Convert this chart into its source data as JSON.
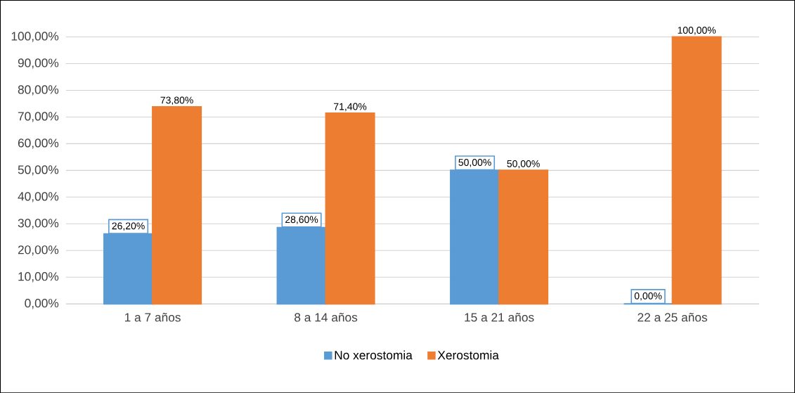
{
  "chart_data": {
    "type": "bar",
    "categories": [
      "1 a 7 años",
      "8 a 14 años",
      "15 a 21 años",
      "22 a 25 años"
    ],
    "series": [
      {
        "name": "No xerostomia",
        "color": "#5b9bd5",
        "values": [
          26.2,
          28.6,
          50,
          0
        ],
        "value_labels": [
          "26,20%",
          "28,60%",
          "50,00%",
          "0,00%"
        ]
      },
      {
        "name": "Xerostomia",
        "color": "#ed7d31",
        "values": [
          73.8,
          71.4,
          50,
          100
        ],
        "value_labels": [
          "73,80%",
          "71,40%",
          "50,00%",
          "100,00%"
        ]
      }
    ],
    "ylim": [
      0,
      100
    ],
    "yticks": [
      {
        "value": 0,
        "label": "0,00%"
      },
      {
        "value": 10,
        "label": "10,00%"
      },
      {
        "value": 20,
        "label": "20,00%"
      },
      {
        "value": 30,
        "label": "30,00%"
      },
      {
        "value": 40,
        "label": "40,00%"
      },
      {
        "value": 50,
        "label": "50,00%"
      },
      {
        "value": 60,
        "label": "60,00%"
      },
      {
        "value": 70,
        "label": "70,00%"
      },
      {
        "value": 80,
        "label": "80,00%"
      },
      {
        "value": 90,
        "label": "90,00%"
      },
      {
        "value": 100,
        "label": "100,00%"
      }
    ],
    "grid": "y",
    "legend": "bottom"
  }
}
